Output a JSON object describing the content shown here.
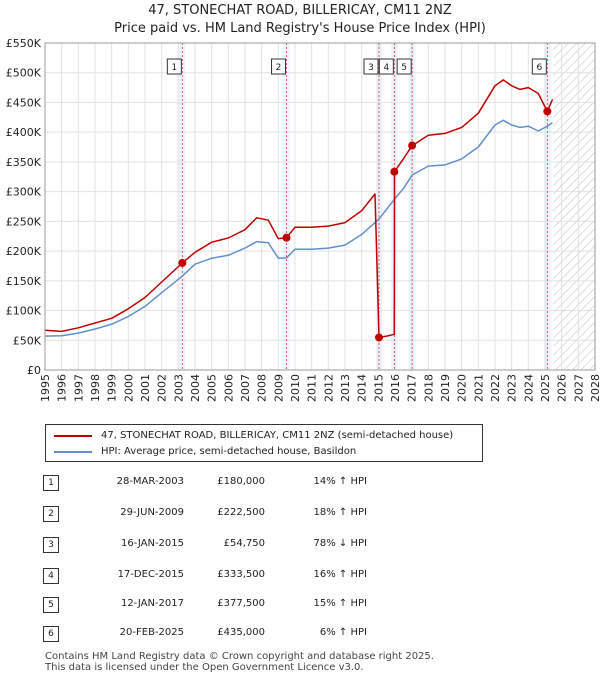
{
  "chart_data": {
    "type": "line",
    "title": "47, STONECHAT ROAD, BILLERICAY, CM11 2NZ",
    "subtitle": "Price paid vs. HM Land Registry's House Price Index (HPI)",
    "xlim": [
      1995,
      2028
    ],
    "ylim": [
      0,
      550000
    ],
    "x_ticks": [
      "1995",
      "1996",
      "1997",
      "1998",
      "1999",
      "2000",
      "2001",
      "2002",
      "2003",
      "2004",
      "2005",
      "2006",
      "2007",
      "2008",
      "2009",
      "2010",
      "2011",
      "2012",
      "2013",
      "2014",
      "2015",
      "2016",
      "2017",
      "2018",
      "2019",
      "2020",
      "2021",
      "2022",
      "2023",
      "2024",
      "2025",
      "2026",
      "2027",
      "2028"
    ],
    "y_ticks": [
      {
        "v": 0,
        "label": "£0"
      },
      {
        "v": 50000,
        "label": "£50K"
      },
      {
        "v": 100000,
        "label": "£100K"
      },
      {
        "v": 150000,
        "label": "£150K"
      },
      {
        "v": 200000,
        "label": "£200K"
      },
      {
        "v": 250000,
        "label": "£250K"
      },
      {
        "v": 300000,
        "label": "£300K"
      },
      {
        "v": 350000,
        "label": "£350K"
      },
      {
        "v": 400000,
        "label": "£400K"
      },
      {
        "v": 450000,
        "label": "£450K"
      },
      {
        "v": 500000,
        "label": "£500K"
      },
      {
        "v": 550000,
        "label": "£550K"
      }
    ],
    "hatch_from": 2025.5,
    "series": [
      {
        "name": "47, STONECHAT ROAD, BILLERICAY, CM11 2NZ (semi-detached house)",
        "color": "#c00000",
        "points": [
          [
            1995.0,
            67000
          ],
          [
            1996.0,
            65000
          ],
          [
            1997.0,
            71000
          ],
          [
            1998.0,
            79000
          ],
          [
            1999.0,
            87000
          ],
          [
            2000.0,
            103000
          ],
          [
            2001.0,
            122000
          ],
          [
            2002.0,
            148000
          ],
          [
            2003.24,
            180000
          ],
          [
            2004.0,
            198000
          ],
          [
            2005.0,
            215000
          ],
          [
            2006.0,
            222000
          ],
          [
            2007.0,
            236000
          ],
          [
            2007.7,
            256000
          ],
          [
            2008.4,
            252000
          ],
          [
            2009.0,
            221000
          ],
          [
            2009.49,
            222500
          ],
          [
            2010.0,
            240000
          ],
          [
            2011.0,
            240000
          ],
          [
            2012.0,
            242000
          ],
          [
            2013.0,
            248000
          ],
          [
            2014.0,
            268000
          ],
          [
            2014.8,
            296000
          ],
          [
            2015.04,
            54750
          ],
          [
            2015.5,
            57000
          ],
          [
            2015.96,
            60000
          ],
          [
            2015.97,
            333500
          ],
          [
            2016.5,
            355000
          ],
          [
            2017.03,
            377500
          ],
          [
            2018.0,
            395000
          ],
          [
            2019.0,
            398000
          ],
          [
            2020.0,
            408000
          ],
          [
            2021.0,
            432000
          ],
          [
            2022.0,
            478000
          ],
          [
            2022.5,
            488000
          ],
          [
            2023.0,
            478000
          ],
          [
            2023.5,
            472000
          ],
          [
            2024.0,
            475000
          ],
          [
            2024.6,
            465000
          ],
          [
            2025.14,
            435000
          ],
          [
            2025.45,
            455000
          ]
        ]
      },
      {
        "name": "HPI: Average price, semi-detached house, Basildon",
        "color": "#6090cc",
        "points": [
          [
            1995.0,
            57000
          ],
          [
            1996.0,
            57500
          ],
          [
            1997.0,
            62000
          ],
          [
            1998.0,
            69000
          ],
          [
            1999.0,
            77000
          ],
          [
            2000.0,
            90000
          ],
          [
            2001.0,
            107000
          ],
          [
            2002.0,
            130000
          ],
          [
            2003.24,
            158000
          ],
          [
            2004.0,
            178000
          ],
          [
            2005.0,
            188000
          ],
          [
            2006.0,
            193000
          ],
          [
            2007.0,
            205000
          ],
          [
            2007.7,
            216000
          ],
          [
            2008.4,
            214000
          ],
          [
            2009.0,
            188000
          ],
          [
            2009.49,
            188600
          ],
          [
            2010.0,
            203000
          ],
          [
            2011.0,
            203000
          ],
          [
            2012.0,
            205000
          ],
          [
            2013.0,
            210000
          ],
          [
            2014.0,
            228000
          ],
          [
            2014.8,
            248000
          ],
          [
            2015.04,
            254000
          ],
          [
            2015.96,
            287000
          ],
          [
            2016.5,
            305000
          ],
          [
            2017.03,
            328000
          ],
          [
            2018.0,
            343000
          ],
          [
            2019.0,
            345000
          ],
          [
            2020.0,
            355000
          ],
          [
            2021.0,
            375000
          ],
          [
            2022.0,
            412000
          ],
          [
            2022.5,
            420000
          ],
          [
            2023.0,
            412000
          ],
          [
            2023.5,
            408000
          ],
          [
            2024.0,
            410000
          ],
          [
            2024.6,
            402000
          ],
          [
            2025.14,
            410000
          ],
          [
            2025.45,
            416000
          ]
        ]
      }
    ],
    "sales": [
      {
        "n": "1",
        "x": 2003.24,
        "price": 180000
      },
      {
        "n": "2",
        "x": 2009.49,
        "price": 222500
      },
      {
        "n": "3",
        "x": 2015.04,
        "price": 54750
      },
      {
        "n": "4",
        "x": 2015.96,
        "price": 333500
      },
      {
        "n": "5",
        "x": 2017.03,
        "price": 377500
      },
      {
        "n": "6",
        "x": 2025.14,
        "price": 435000
      }
    ]
  },
  "legend": {
    "property": "47, STONECHAT ROAD, BILLERICAY, CM11 2NZ (semi-detached house)",
    "hpi": "HPI: Average price, semi-detached house, Basildon",
    "property_color": "#c00000",
    "hpi_color": "#6090cc"
  },
  "transactions": [
    {
      "n": "1",
      "date": "28-MAR-2003",
      "price": "£180,000",
      "hpi": "14% ↑ HPI"
    },
    {
      "n": "2",
      "date": "29-JUN-2009",
      "price": "£222,500",
      "hpi": "18% ↑ HPI"
    },
    {
      "n": "3",
      "date": "16-JAN-2015",
      "price": "£54,750",
      "hpi": "78% ↓ HPI"
    },
    {
      "n": "4",
      "date": "17-DEC-2015",
      "price": "£333,500",
      "hpi": "16% ↑ HPI"
    },
    {
      "n": "5",
      "date": "12-JAN-2017",
      "price": "£377,500",
      "hpi": "15% ↑ HPI"
    },
    {
      "n": "6",
      "date": "20-FEB-2025",
      "price": "£435,000",
      "hpi": "6% ↑ HPI"
    }
  ],
  "footer": {
    "line1": "Contains HM Land Registry data © Crown copyright and database right 2025.",
    "line2": "This data is licensed under the Open Government Licence v3.0."
  }
}
